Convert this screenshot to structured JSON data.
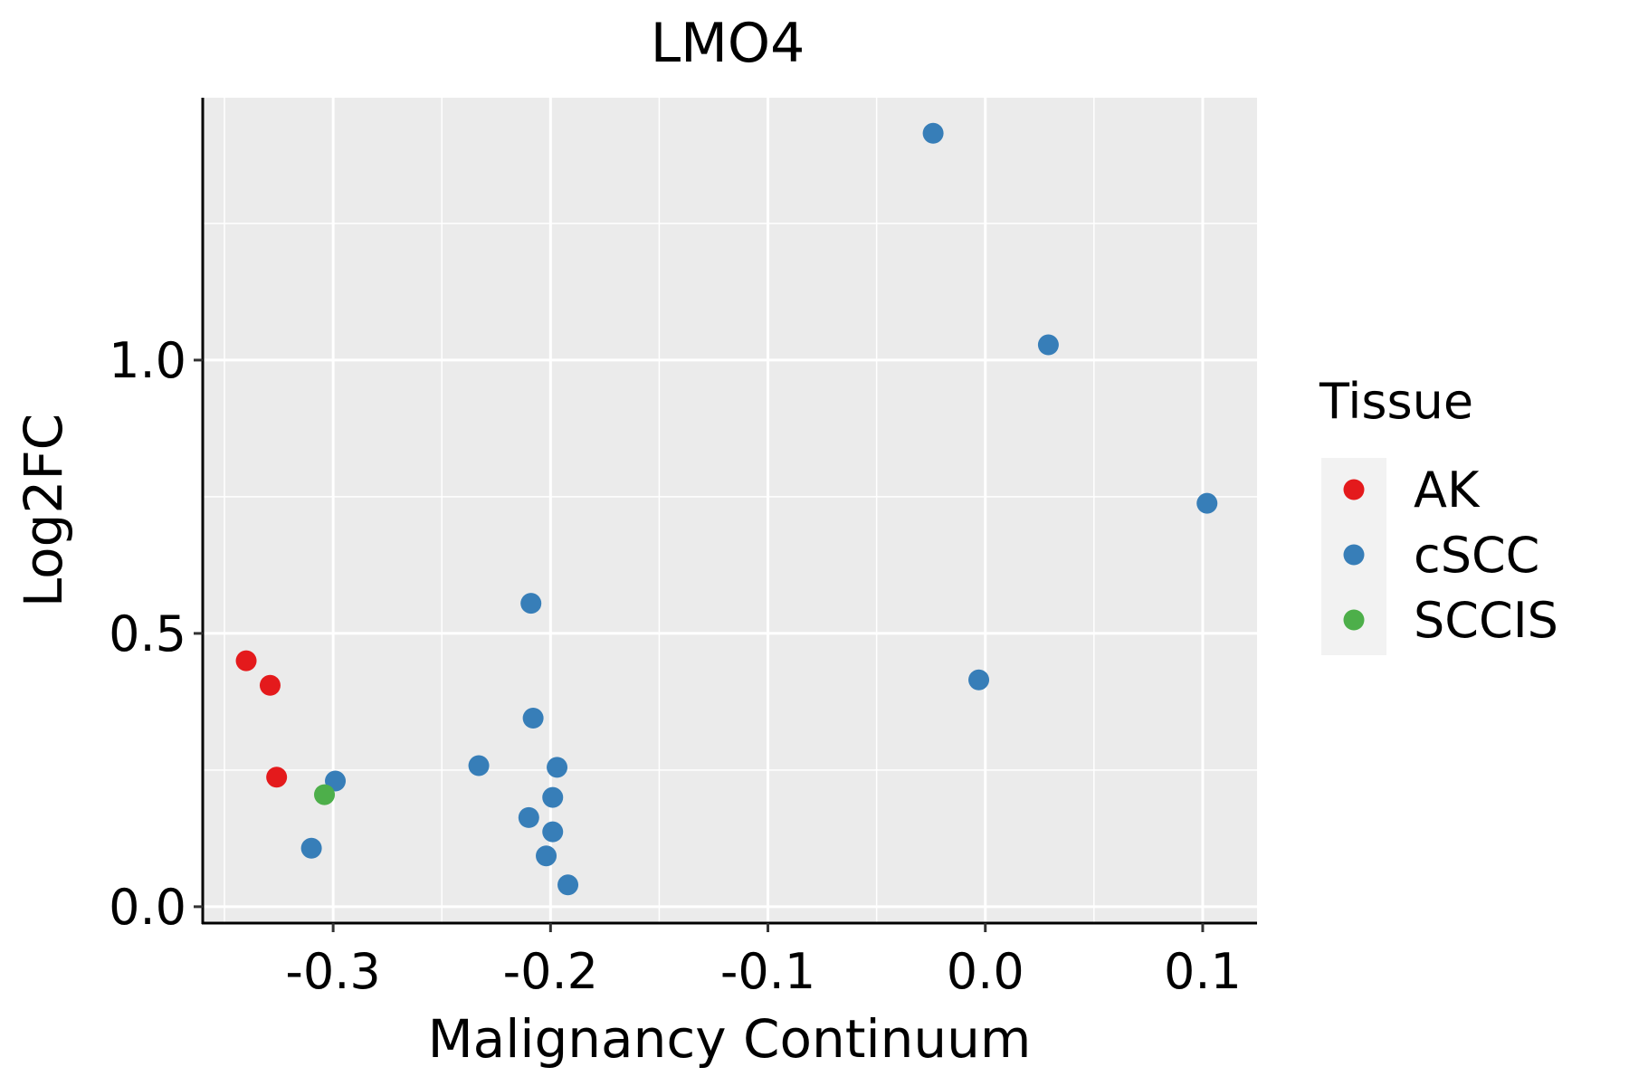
{
  "chart_data": {
    "type": "scatter",
    "title": "LMO4",
    "xlabel": "Malignancy Continuum",
    "ylabel": "Log2FC",
    "xlim": [
      -0.36,
      0.125
    ],
    "ylim": [
      -0.03,
      1.48
    ],
    "x_ticks": [
      -0.3,
      -0.2,
      -0.1,
      0.0,
      0.1
    ],
    "x_tick_labels": [
      "-0.3",
      "-0.2",
      "-0.1",
      "0.0",
      "0.1"
    ],
    "y_ticks": [
      0.0,
      0.5,
      1.0
    ],
    "y_tick_labels": [
      "0.0",
      "0.5",
      "1.0"
    ],
    "grid": true,
    "legend": {
      "title": "Tissue",
      "position": "right",
      "entries": [
        {
          "name": "AK",
          "color": "#E41A1C"
        },
        {
          "name": "cSCC",
          "color": "#377EB8"
        },
        {
          "name": "SCCIS",
          "color": "#4DAF4A"
        }
      ]
    },
    "series": [
      {
        "name": "AK",
        "color": "#E41A1C",
        "points": [
          {
            "x": -0.34,
            "y": 0.45
          },
          {
            "x": -0.329,
            "y": 0.405
          },
          {
            "x": -0.326,
            "y": 0.237
          }
        ]
      },
      {
        "name": "cSCC",
        "color": "#377EB8",
        "points": [
          {
            "x": -0.024,
            "y": 1.415
          },
          {
            "x": 0.029,
            "y": 1.028
          },
          {
            "x": 0.102,
            "y": 0.738
          },
          {
            "x": -0.209,
            "y": 0.555
          },
          {
            "x": -0.003,
            "y": 0.415
          },
          {
            "x": -0.208,
            "y": 0.345
          },
          {
            "x": -0.233,
            "y": 0.258
          },
          {
            "x": -0.197,
            "y": 0.255
          },
          {
            "x": -0.299,
            "y": 0.23
          },
          {
            "x": -0.199,
            "y": 0.2
          },
          {
            "x": -0.21,
            "y": 0.163
          },
          {
            "x": -0.199,
            "y": 0.137
          },
          {
            "x": -0.202,
            "y": 0.093
          },
          {
            "x": -0.31,
            "y": 0.107
          },
          {
            "x": -0.192,
            "y": 0.04
          }
        ]
      },
      {
        "name": "SCCIS",
        "color": "#4DAF4A",
        "points": [
          {
            "x": -0.304,
            "y": 0.205
          }
        ]
      }
    ]
  }
}
